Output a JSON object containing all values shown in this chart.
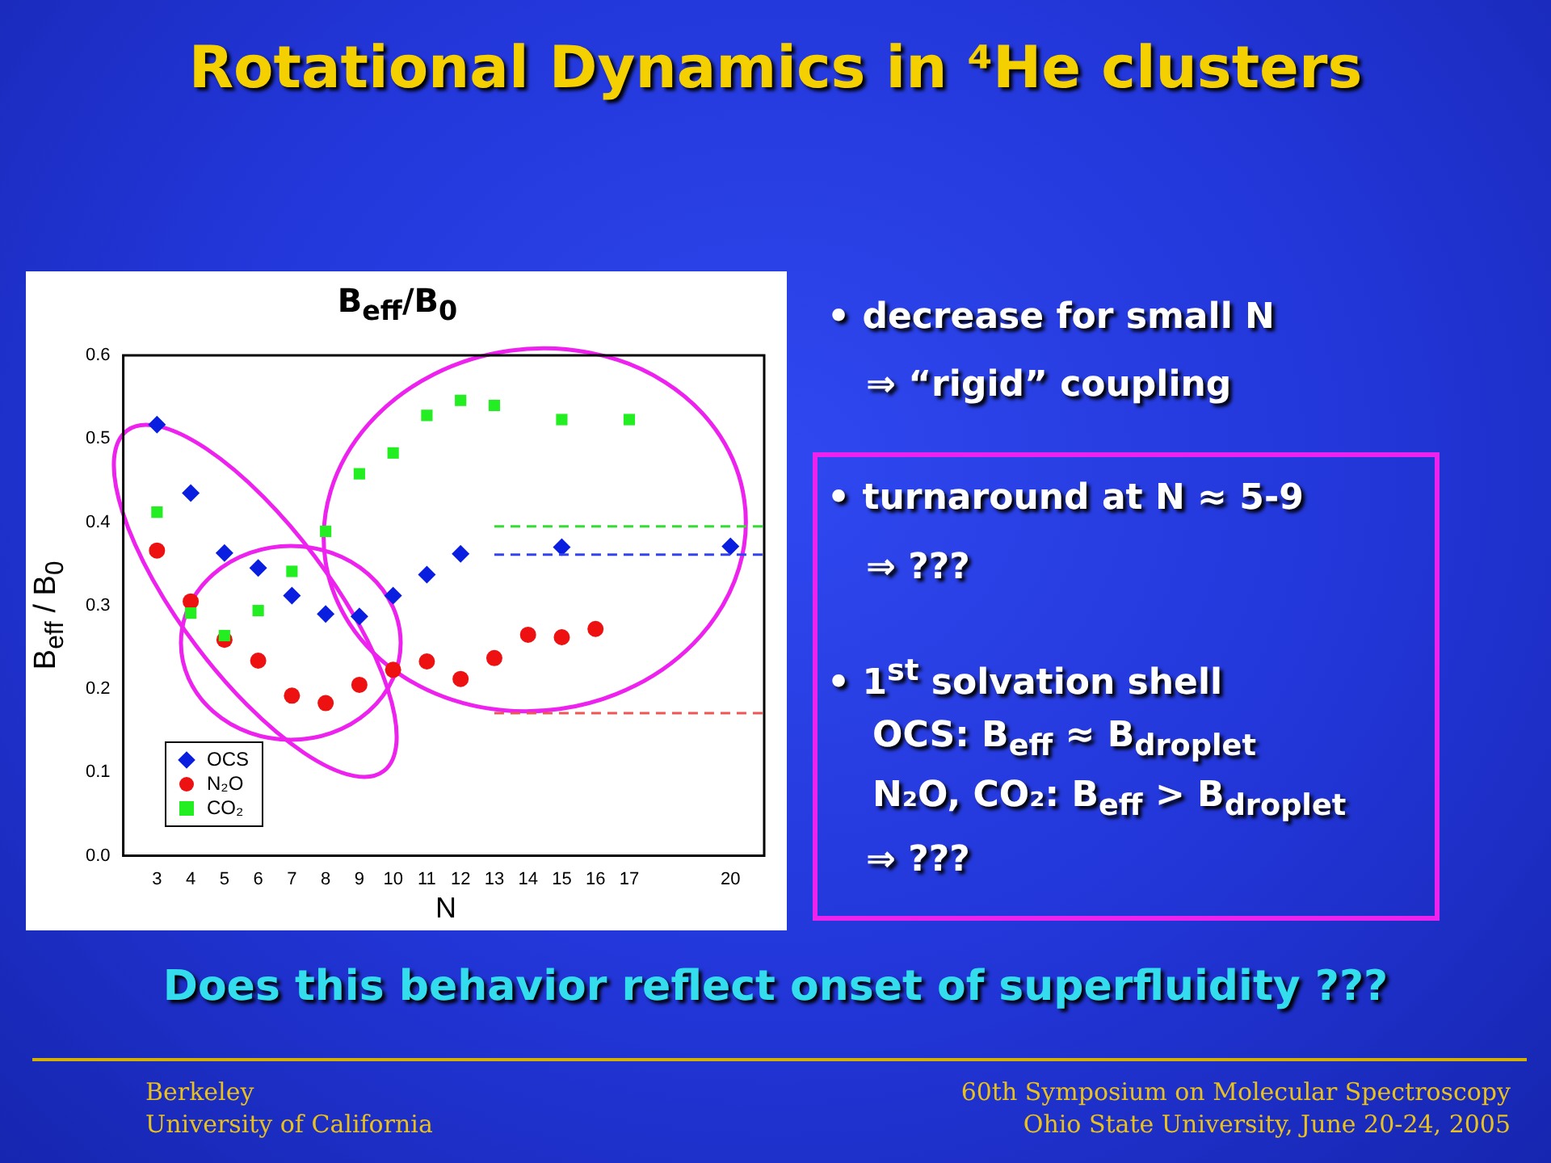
{
  "chart_data": {
    "type": "scatter",
    "title": "Rotational Dynamics in ⁴He clusters",
    "subtitle": "B$_{eff}$/B$_{0}$",
    "xlabel": "N",
    "ylabel": "B$_{eff}$ / B$_{0}$",
    "xlim": [
      2,
      21
    ],
    "xticks": [
      3,
      4,
      5,
      6,
      7,
      8,
      9,
      10,
      11,
      12,
      13,
      14,
      15,
      16,
      17,
      20
    ],
    "ylim": [
      0,
      0.6
    ],
    "yticks": [
      {
        "value": 0,
        "label": "0.0"
      },
      0.1,
      0.2,
      0.3,
      0.4,
      0.5,
      0.6
    ],
    "grid": false,
    "legend": "bottom left",
    "series": [
      {
        "name": "OCS",
        "color": "#0a1ee0",
        "marker": "diamond",
        "x": [
          3,
          4,
          5,
          6,
          7,
          8,
          9,
          10,
          11,
          12,
          15,
          20
        ],
        "values": [
          0.517,
          0.435,
          0.363,
          0.345,
          0.312,
          0.29,
          0.287,
          0.312,
          0.337,
          0.362,
          0.37,
          0.371
        ]
      },
      {
        "name": "N₂O",
        "color": "#ee1111",
        "marker": "circle",
        "x": [
          3,
          4,
          5,
          6,
          7,
          8,
          9,
          10,
          11,
          12,
          13,
          14,
          15,
          16
        ],
        "values": [
          0.366,
          0.305,
          0.259,
          0.234,
          0.192,
          0.183,
          0.205,
          0.223,
          0.233,
          0.212,
          0.237,
          0.265,
          0.262,
          0.272
        ]
      },
      {
        "name": "CO₂",
        "color": "#22ee22",
        "marker": "square",
        "x": [
          3,
          4,
          5,
          6,
          7,
          8,
          9,
          10,
          11,
          12,
          13,
          15,
          17
        ],
        "values": [
          0.412,
          0.291,
          0.264,
          0.294,
          0.341,
          0.389,
          0.458,
          0.483,
          0.528,
          0.546,
          0.54,
          0.523,
          0.523
        ]
      },
      {
        "type": "line",
        "color": "#33dd33",
        "line_style": "dashed",
        "marker": "none",
        "x": [
          13,
          21
        ],
        "values": [
          0.395,
          0.395
        ]
      },
      {
        "type": "line",
        "color": "#3344ee",
        "line_style": "dashed",
        "marker": "none",
        "x": [
          13,
          21
        ],
        "values": [
          0.361,
          0.361
        ]
      },
      {
        "type": "line",
        "color": "#ee5555",
        "line_style": "dashed",
        "marker": "none",
        "x": [
          13,
          21
        ],
        "values": [
          0.171,
          0.171
        ]
      }
    ],
    "annotations": [
      "• decrease for small N",
      "⇒ “rigid” coupling",
      "• turnaround at N ≈ 5-9",
      "⇒ ???",
      "• 1$^{st}$ solvation shell",
      "OCS: B$_{eff}$ ≈ B$_{droplet}$",
      "N₂O, CO₂: B$_{eff}$ > B$_{droplet}$",
      "⇒ ???",
      "Does this behavior reflect onset of superfluidity ???",
      "Berkeley",
      "University of California",
      "60th Symposium on Molecular Spectroscopy",
      "Ohio State University, June 20-24, 2005"
    ]
  }
}
